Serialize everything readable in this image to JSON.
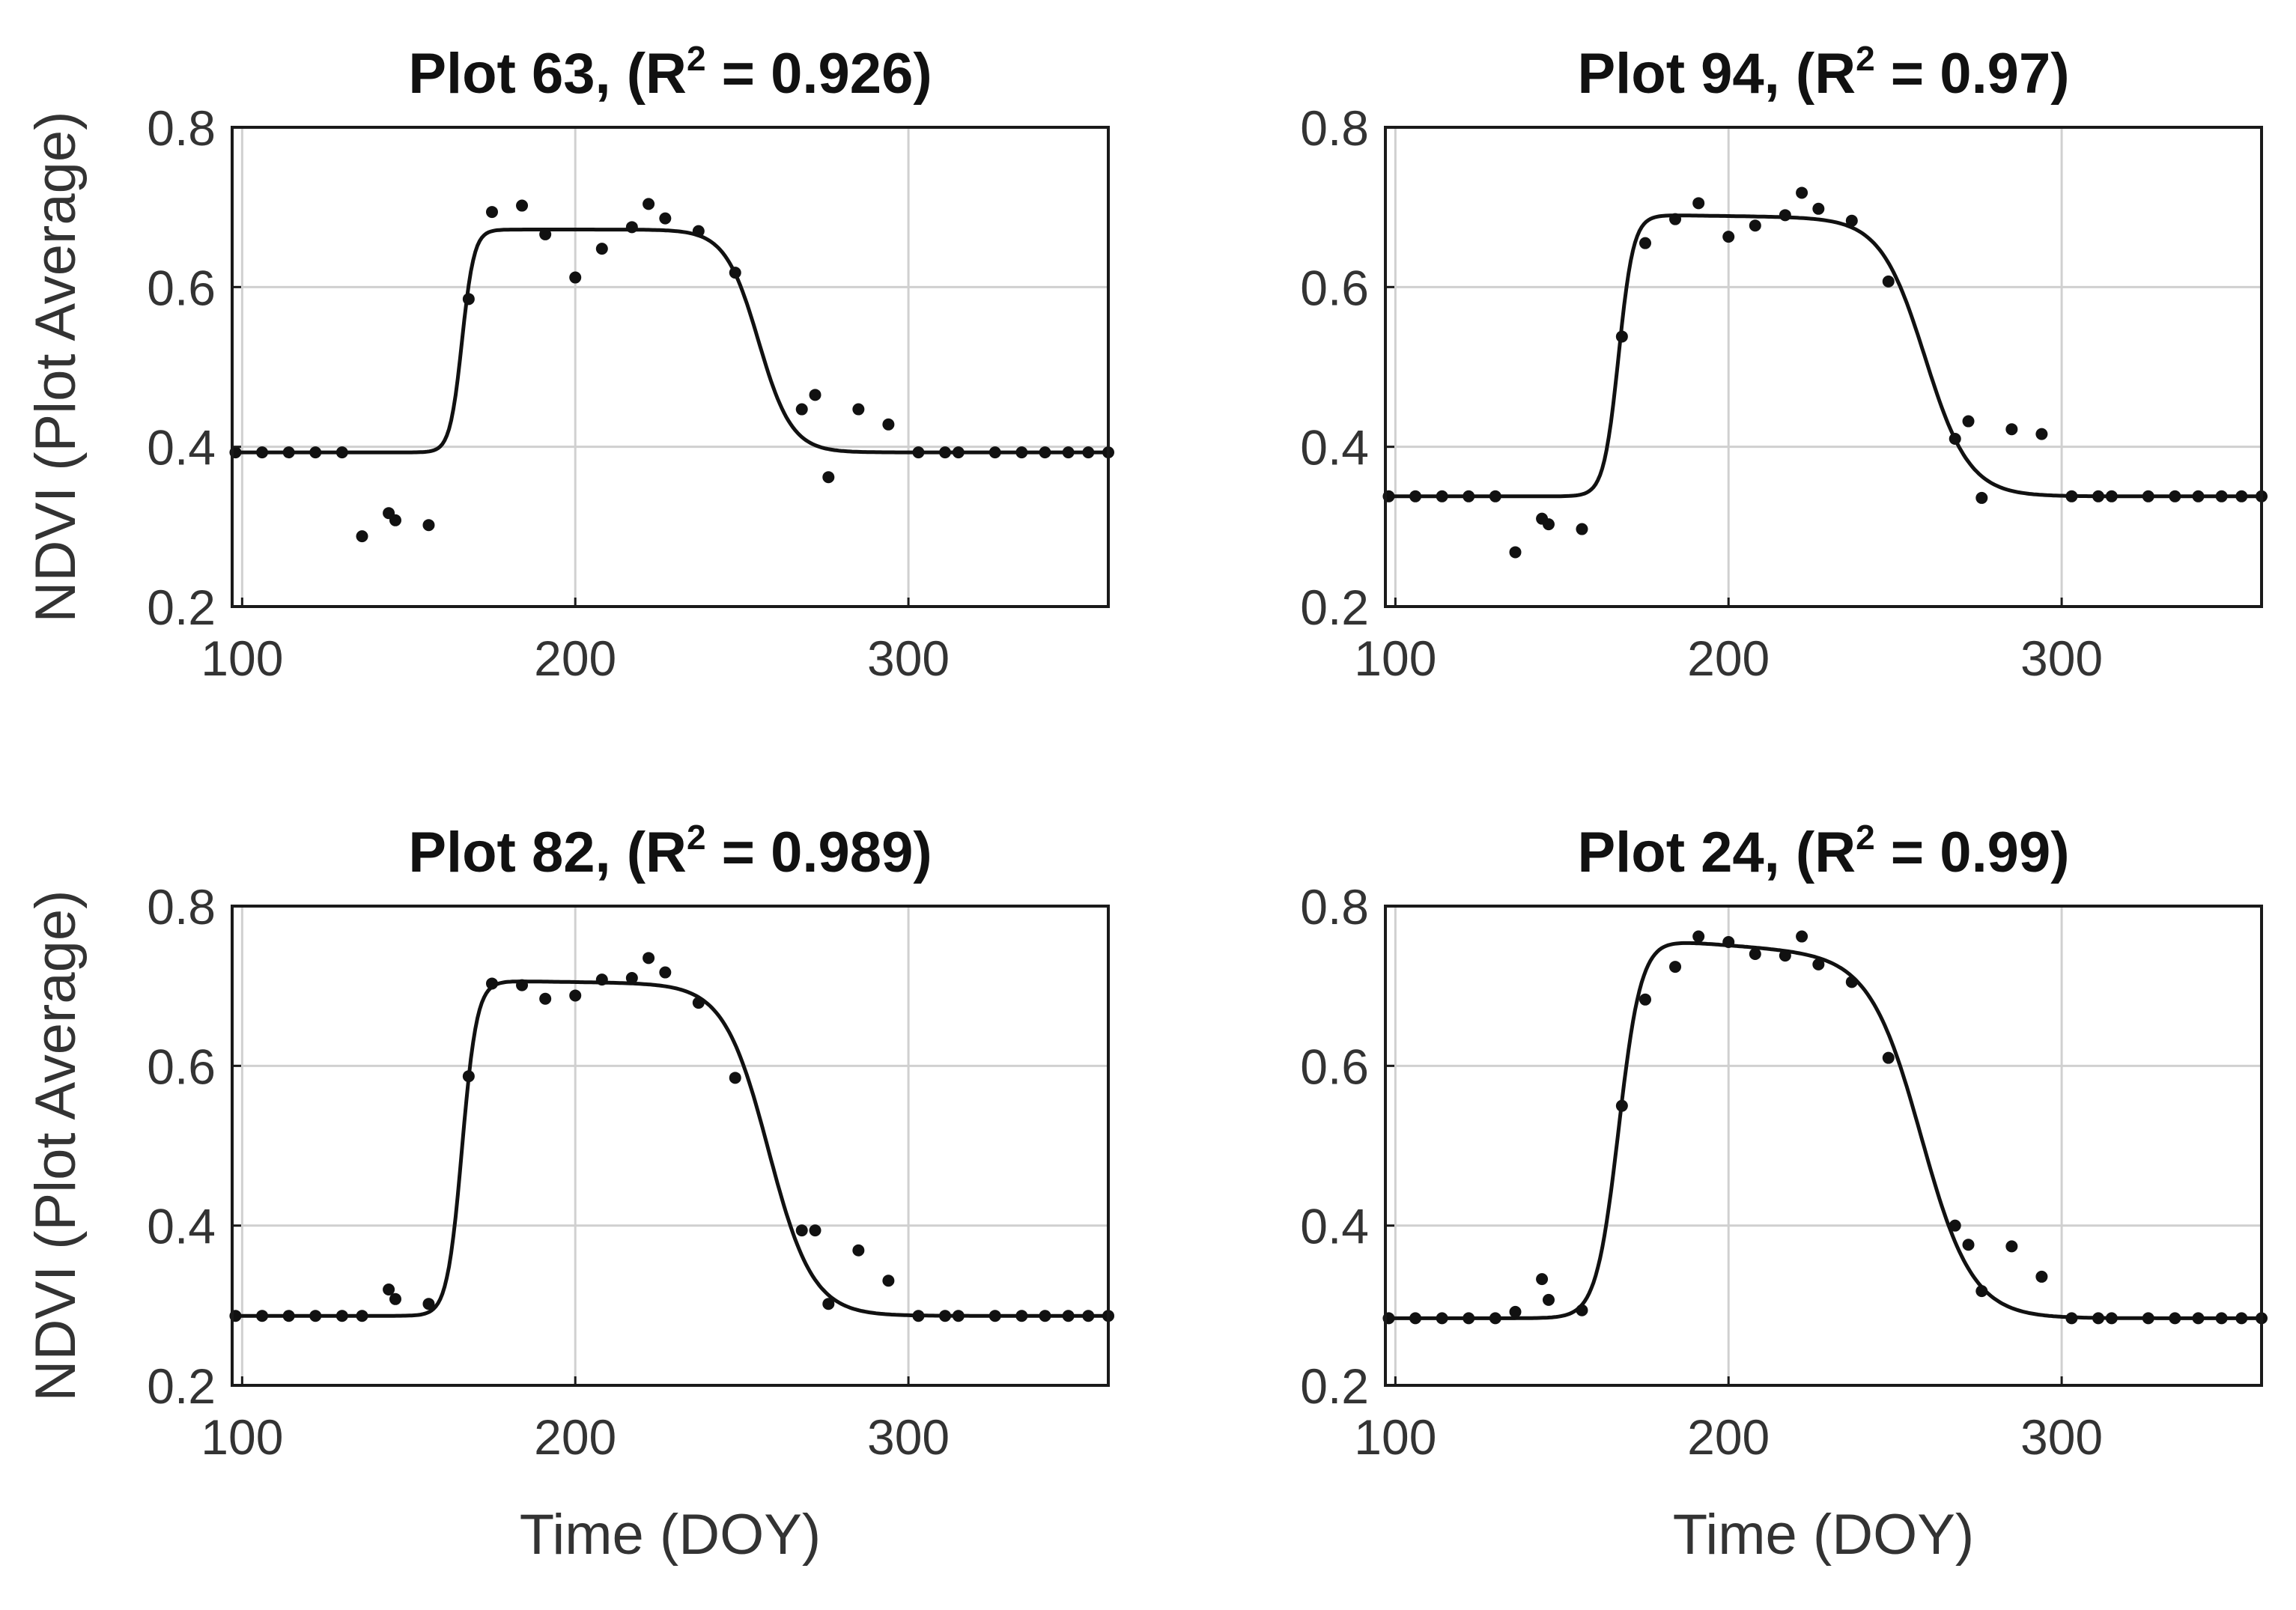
{
  "chart_data": [
    {
      "type": "scatter",
      "title_main": "Plot 63, (R",
      "title_sup": "2",
      "title_tail": " = 0.926)",
      "xlabel": "",
      "ylabel": "NDVI (Plot Average)",
      "xlim": [
        97,
        360
      ],
      "ylim": [
        0.2,
        0.8
      ],
      "xticks": [
        100,
        200,
        300
      ],
      "yticks": [
        0.2,
        0.4,
        0.6,
        0.8
      ],
      "xtick_labels": [
        "100",
        "200",
        "300"
      ],
      "ytick_labels": [
        "0.2",
        "0.4",
        "0.6",
        "0.8"
      ],
      "grid": true,
      "fit": {
        "base": 0.393,
        "peak": 0.672,
        "greenup_mid": 166,
        "greenup_rate": 0.55,
        "senesce_mid": 255,
        "senesce_rate": 0.2,
        "senesce_tail": 0
      },
      "points": [
        [
          98,
          0.393
        ],
        [
          106,
          0.393
        ],
        [
          114,
          0.393
        ],
        [
          122,
          0.393
        ],
        [
          130,
          0.393
        ],
        [
          136,
          0.288
        ],
        [
          144,
          0.317
        ],
        [
          146,
          0.308
        ],
        [
          156,
          0.302
        ],
        [
          168,
          0.585
        ],
        [
          175,
          0.694
        ],
        [
          184,
          0.702
        ],
        [
          191,
          0.666
        ],
        [
          200,
          0.612
        ],
        [
          208,
          0.648
        ],
        [
          217,
          0.675
        ],
        [
          222,
          0.704
        ],
        [
          227,
          0.686
        ],
        [
          237,
          0.67
        ],
        [
          248,
          0.618
        ],
        [
          268,
          0.447
        ],
        [
          272,
          0.465
        ],
        [
          276,
          0.362
        ],
        [
          285,
          0.447
        ],
        [
          294,
          0.428
        ],
        [
          303,
          0.393
        ],
        [
          311,
          0.393
        ],
        [
          315,
          0.393
        ],
        [
          326,
          0.393
        ],
        [
          334,
          0.393
        ],
        [
          341,
          0.393
        ],
        [
          348,
          0.393
        ],
        [
          354,
          0.393
        ],
        [
          360,
          0.393
        ]
      ]
    },
    {
      "type": "scatter",
      "title_main": "Plot 94, (R",
      "title_sup": "2",
      "title_tail": " = 0.97)",
      "xlabel": "",
      "ylabel": "",
      "xlim": [
        97,
        360
      ],
      "ylim": [
        0.2,
        0.8
      ],
      "xticks": [
        100,
        200,
        300
      ],
      "yticks": [
        0.2,
        0.4,
        0.6,
        0.8
      ],
      "xtick_labels": [
        "100",
        "200",
        "300"
      ],
      "ytick_labels": [
        "0.2",
        "0.4",
        "0.6",
        "0.8"
      ],
      "grid": true,
      "fit": {
        "base": 0.338,
        "peak": 0.69,
        "greenup_mid": 167,
        "greenup_rate": 0.45,
        "senesce_mid": 259,
        "senesce_rate": 0.15,
        "senesce_tail": 0.012
      },
      "points": [
        [
          98,
          0.338
        ],
        [
          106,
          0.338
        ],
        [
          114,
          0.338
        ],
        [
          122,
          0.338
        ],
        [
          130,
          0.338
        ],
        [
          136,
          0.268
        ],
        [
          144,
          0.31
        ],
        [
          146,
          0.303
        ],
        [
          156,
          0.297
        ],
        [
          168,
          0.538
        ],
        [
          175,
          0.655
        ],
        [
          184,
          0.685
        ],
        [
          191,
          0.705
        ],
        [
          200,
          0.663
        ],
        [
          208,
          0.677
        ],
        [
          217,
          0.69
        ],
        [
          222,
          0.718
        ],
        [
          227,
          0.698
        ],
        [
          237,
          0.683
        ],
        [
          248,
          0.607
        ],
        [
          268,
          0.41
        ],
        [
          272,
          0.432
        ],
        [
          276,
          0.336
        ],
        [
          285,
          0.422
        ],
        [
          294,
          0.416
        ],
        [
          303,
          0.338
        ],
        [
          311,
          0.338
        ],
        [
          315,
          0.338
        ],
        [
          326,
          0.338
        ],
        [
          334,
          0.338
        ],
        [
          341,
          0.338
        ],
        [
          348,
          0.338
        ],
        [
          354,
          0.338
        ],
        [
          360,
          0.338
        ]
      ]
    },
    {
      "type": "scatter",
      "title_main": "Plot 82, (R",
      "title_sup": "2",
      "title_tail": " = 0.989)",
      "xlabel": "Time (DOY)",
      "ylabel": "NDVI (Plot Average)",
      "xlim": [
        97,
        360
      ],
      "ylim": [
        0.2,
        0.8
      ],
      "xticks": [
        100,
        200,
        300
      ],
      "yticks": [
        0.2,
        0.4,
        0.6,
        0.8
      ],
      "xtick_labels": [
        "100",
        "200",
        "300"
      ],
      "ytick_labels": [
        "0.2",
        "0.4",
        "0.6",
        "0.8"
      ],
      "grid": true,
      "fit": {
        "base": 0.287,
        "peak": 0.706,
        "greenup_mid": 166,
        "greenup_rate": 0.45,
        "senesce_mid": 258,
        "senesce_rate": 0.15,
        "senesce_tail": 0.01
      },
      "points": [
        [
          98,
          0.287
        ],
        [
          106,
          0.287
        ],
        [
          114,
          0.287
        ],
        [
          122,
          0.287
        ],
        [
          130,
          0.287
        ],
        [
          136,
          0.287
        ],
        [
          144,
          0.32
        ],
        [
          146,
          0.308
        ],
        [
          156,
          0.302
        ],
        [
          168,
          0.587
        ],
        [
          175,
          0.703
        ],
        [
          184,
          0.701
        ],
        [
          191,
          0.684
        ],
        [
          200,
          0.688
        ],
        [
          208,
          0.708
        ],
        [
          217,
          0.71
        ],
        [
          222,
          0.735
        ],
        [
          227,
          0.717
        ],
        [
          237,
          0.679
        ],
        [
          248,
          0.585
        ],
        [
          268,
          0.394
        ],
        [
          272,
          0.394
        ],
        [
          276,
          0.302
        ],
        [
          285,
          0.369
        ],
        [
          294,
          0.331
        ],
        [
          303,
          0.287
        ],
        [
          311,
          0.287
        ],
        [
          315,
          0.287
        ],
        [
          326,
          0.287
        ],
        [
          334,
          0.287
        ],
        [
          341,
          0.287
        ],
        [
          348,
          0.287
        ],
        [
          354,
          0.287
        ],
        [
          360,
          0.287
        ]
      ]
    },
    {
      "type": "scatter",
      "title_main": "Plot 24, (R",
      "title_sup": "2",
      "title_tail": " = 0.99)",
      "xlabel": "Time (DOY)",
      "ylabel": "",
      "xlim": [
        97,
        360
      ],
      "ylim": [
        0.2,
        0.8
      ],
      "xticks": [
        100,
        200,
        300
      ],
      "yticks": [
        0.2,
        0.4,
        0.6,
        0.8
      ],
      "xtick_labels": [
        "100",
        "200",
        "300"
      ],
      "ytick_labels": [
        "0.2",
        "0.4",
        "0.6",
        "0.8"
      ],
      "grid": true,
      "fit": {
        "base": 0.284,
        "peak": 0.757,
        "greenup_mid": 167,
        "greenup_rate": 0.3,
        "senesce_mid": 258,
        "senesce_rate": 0.13,
        "senesce_tail": 0.05
      },
      "points": [
        [
          98,
          0.284
        ],
        [
          106,
          0.284
        ],
        [
          114,
          0.284
        ],
        [
          122,
          0.284
        ],
        [
          130,
          0.284
        ],
        [
          136,
          0.292
        ],
        [
          144,
          0.333
        ],
        [
          146,
          0.307
        ],
        [
          156,
          0.294
        ],
        [
          168,
          0.55
        ],
        [
          175,
          0.683
        ],
        [
          184,
          0.724
        ],
        [
          191,
          0.762
        ],
        [
          200,
          0.755
        ],
        [
          208,
          0.74
        ],
        [
          217,
          0.738
        ],
        [
          222,
          0.762
        ],
        [
          227,
          0.727
        ],
        [
          237,
          0.705
        ],
        [
          248,
          0.61
        ],
        [
          268,
          0.4
        ],
        [
          272,
          0.376
        ],
        [
          276,
          0.318
        ],
        [
          285,
          0.374
        ],
        [
          294,
          0.336
        ],
        [
          303,
          0.284
        ],
        [
          311,
          0.284
        ],
        [
          315,
          0.284
        ],
        [
          326,
          0.284
        ],
        [
          334,
          0.284
        ],
        [
          341,
          0.284
        ],
        [
          348,
          0.284
        ],
        [
          354,
          0.284
        ],
        [
          360,
          0.284
        ]
      ]
    }
  ]
}
